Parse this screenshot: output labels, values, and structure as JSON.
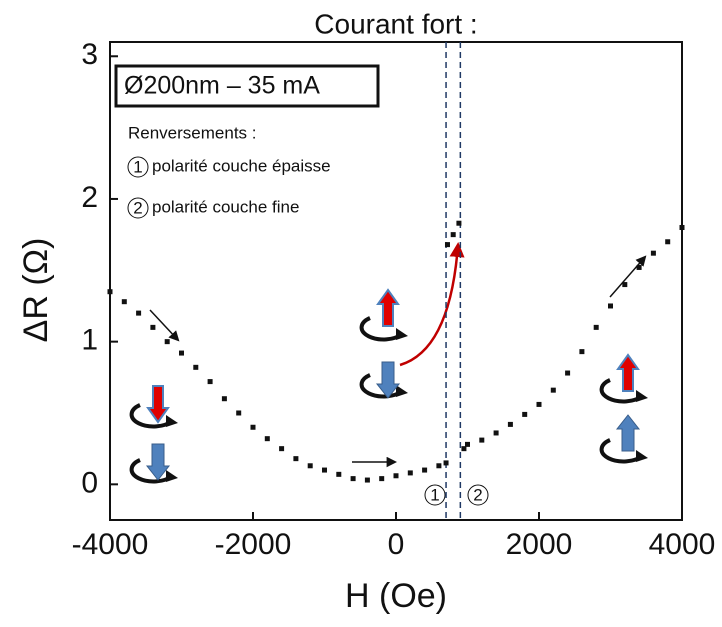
{
  "chart_data": {
    "type": "scatter",
    "title": "Courant fort :",
    "x_label": "H (Oe)",
    "y_label": "ΔR (Ω)",
    "x": [
      -4000,
      -3800,
      -3600,
      -3400,
      -3200,
      -3000,
      -2800,
      -2600,
      -2400,
      -2200,
      -2000,
      -1800,
      -1600,
      -1400,
      -1200,
      -1000,
      -800,
      -600,
      -400,
      -200,
      0,
      200,
      400,
      600,
      700,
      720,
      800,
      880,
      950,
      1000,
      1200,
      1400,
      1600,
      1800,
      2000,
      2200,
      2400,
      2600,
      2800,
      3000,
      3200,
      3400,
      3600,
      3800,
      4000
    ],
    "values": [
      1.35,
      1.28,
      1.2,
      1.1,
      1.0,
      0.92,
      0.82,
      0.72,
      0.6,
      0.5,
      0.4,
      0.32,
      0.25,
      0.18,
      0.13,
      0.1,
      0.07,
      0.04,
      0.03,
      0.04,
      0.06,
      0.08,
      0.1,
      0.13,
      0.15,
      1.68,
      1.75,
      1.83,
      0.25,
      0.28,
      0.31,
      0.36,
      0.42,
      0.49,
      0.56,
      0.66,
      0.78,
      0.93,
      1.1,
      1.25,
      1.4,
      1.52,
      1.62,
      1.7,
      1.8
    ],
    "color": "#111111",
    "xlim": [
      -4000,
      4000
    ],
    "ylim": [
      -0.25,
      3.1
    ],
    "xticks": [
      -4000,
      -2000,
      0,
      2000,
      4000
    ],
    "yticks": [
      0,
      1,
      2,
      3
    ],
    "vlines": [
      700,
      900
    ],
    "annotations": {
      "sample": "Ø200nm – 35 mA",
      "heading": "Renversements :",
      "n1": "1",
      "item1": "polarité couche épaisse",
      "n2": "2",
      "item2": "polarité couche fine",
      "marker1": "1",
      "marker2": "2"
    }
  }
}
